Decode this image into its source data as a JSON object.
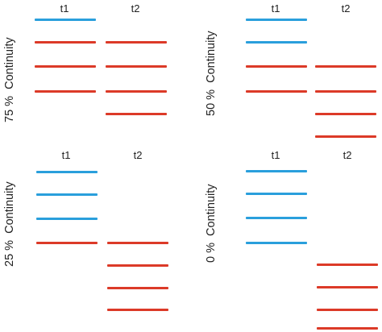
{
  "colors": {
    "retained": "#2a9fdc",
    "new": "#dc3a28"
  },
  "panels": [
    {
      "percent": "75 %",
      "label": "Continuity",
      "col1": "t1",
      "col2": "t2",
      "t1": [
        "retained",
        "new",
        "new",
        "new"
      ],
      "t2": [
        "new",
        "new",
        "new",
        "new"
      ]
    },
    {
      "percent": "50 %",
      "label": "Continuity",
      "col1": "t1",
      "col2": "t2",
      "t1": [
        "retained",
        "retained",
        "new",
        "new"
      ],
      "t2": [
        "new",
        "new",
        "new",
        "new"
      ]
    },
    {
      "percent": "25 %",
      "label": "Continuity",
      "col1": "t1",
      "col2": "t2",
      "t1": [
        "retained",
        "retained",
        "retained",
        "new"
      ],
      "t2": [
        "new",
        "new",
        "new",
        "new"
      ]
    },
    {
      "percent": "0 %",
      "label": "Continuity",
      "col1": "t1",
      "col2": "t2",
      "t1": [
        "retained",
        "retained",
        "retained",
        "retained"
      ],
      "t2": [
        "new",
        "new",
        "new",
        "new"
      ]
    }
  ]
}
